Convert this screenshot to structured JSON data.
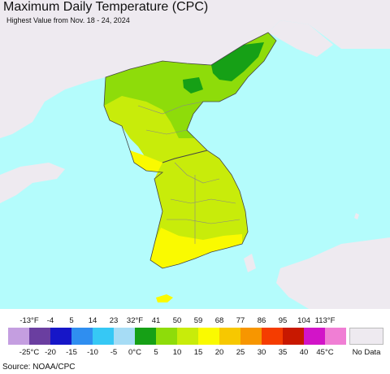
{
  "title": "Maximum Daily Temperature (CPC)",
  "subtitle": "Highest Value from Nov. 18 - 24, 2024",
  "source": "Source: NOAA/CPC",
  "legend": {
    "fahrenheit_labels": [
      "-13°F",
      "-4",
      "5",
      "14",
      "23",
      "32°F",
      "41",
      "50",
      "59",
      "68",
      "77",
      "86",
      "95",
      "104",
      "113°F"
    ],
    "celsius_labels": [
      "-25°C",
      "-20",
      "-15",
      "-10",
      "-5",
      "0°C",
      "5",
      "10",
      "15",
      "20",
      "25",
      "30",
      "35",
      "40",
      "45°C"
    ],
    "colors": [
      "#c49ee0",
      "#6a3ea0",
      "#1616c8",
      "#2f8ef0",
      "#36c8f5",
      "#a6dcf5",
      "#16a016",
      "#8edc0a",
      "#c8ec0a",
      "#fafa00",
      "#f7c800",
      "#f79600",
      "#f53c00",
      "#c81800",
      "#d214c8",
      "#f07ed4"
    ],
    "no_data_label": "No Data",
    "no_data_color": "#eeeaf0"
  },
  "map": {
    "sea_color": "#b4fcfc",
    "nodata_land_color": "#eeeaf0",
    "temperature_zone_colors": {
      "north_peak": "#16a016",
      "north_high": "#8edc0a",
      "mid": "#c8ec0a",
      "warm": "#fafa00"
    }
  }
}
